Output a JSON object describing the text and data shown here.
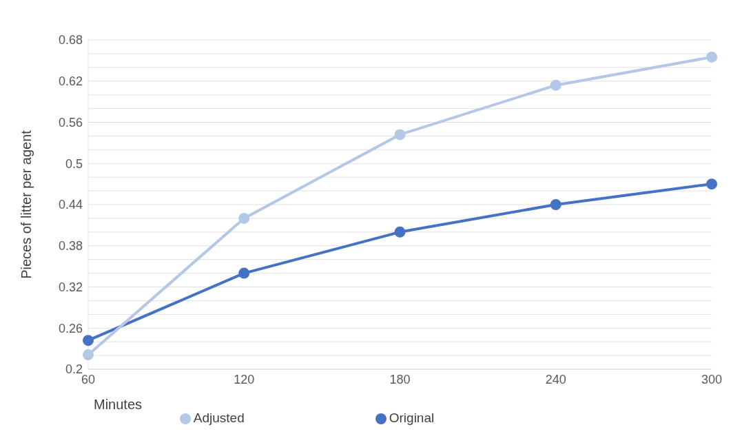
{
  "chart_data": {
    "type": "line",
    "xlabel": "Minutes",
    "ylabel": "Pieces of litter per agent",
    "categories": [
      "60",
      "120",
      "180",
      "240",
      "300"
    ],
    "series": [
      {
        "name": "Original",
        "color": "#4472c4",
        "values": [
          0.242,
          0.34,
          0.4,
          0.44,
          0.47
        ]
      },
      {
        "name": "Adjusted",
        "color": "#b4c7e7",
        "values": [
          0.221,
          0.42,
          0.542,
          0.614,
          0.655
        ]
      }
    ],
    "ylim": [
      0.2,
      0.68
    ],
    "yticks": [
      0.2,
      {
        "value": 0.22,
        "label": null
      },
      {
        "value": 0.24,
        "label": null
      },
      0.26,
      {
        "value": 0.28,
        "label": null
      },
      {
        "value": 0.3,
        "label": null
      },
      0.32,
      {
        "value": 0.34,
        "label": null
      },
      {
        "value": 0.36,
        "label": null
      },
      0.38,
      {
        "value": 0.4,
        "label": null
      },
      {
        "value": 0.42,
        "label": null
      },
      0.44,
      {
        "value": 0.46,
        "label": null
      },
      {
        "value": 0.48,
        "label": null
      },
      0.5,
      {
        "value": 0.52,
        "label": null
      },
      {
        "value": 0.54,
        "label": null
      },
      0.56,
      {
        "value": 0.58,
        "label": null
      },
      {
        "value": 0.6,
        "label": null
      },
      0.62,
      {
        "value": 0.64,
        "label": null
      },
      {
        "value": 0.66,
        "label": null
      },
      0.68
    ],
    "grid": "y",
    "legend": "bottom",
    "marker": "circle",
    "line_style": "solid"
  }
}
